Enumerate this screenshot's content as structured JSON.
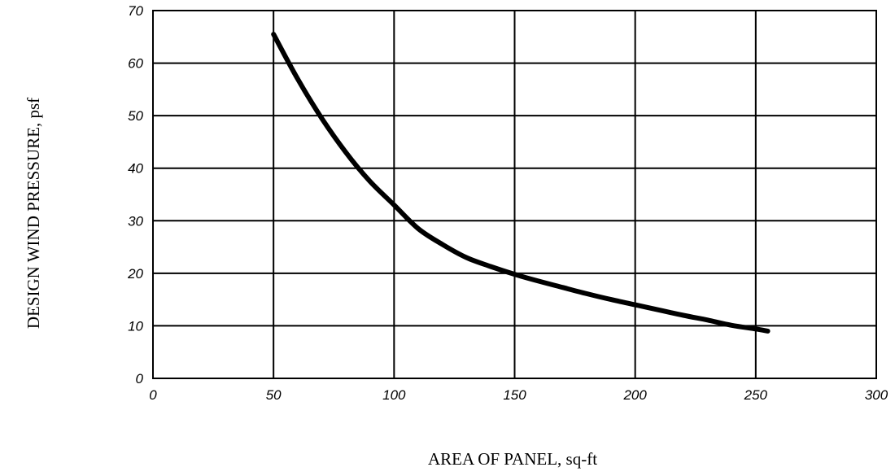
{
  "chart_data": {
    "type": "line",
    "title": "",
    "xlabel": "AREA OF PANEL, sq-ft",
    "ylabel": "DESIGN WIND PRESSURE, psf",
    "xlim": [
      0,
      300
    ],
    "ylim": [
      0,
      70
    ],
    "xticks": [
      0,
      50,
      100,
      150,
      200,
      250,
      300
    ],
    "yticks": [
      0,
      10,
      20,
      30,
      40,
      50,
      60,
      70
    ],
    "grid": true,
    "series": [
      {
        "x": [
          50,
          60,
          70,
          80,
          90,
          100,
          110,
          120,
          130,
          140,
          150,
          160,
          170,
          180,
          190,
          200,
          210,
          220,
          230,
          240,
          250,
          255
        ],
        "y": [
          65.5,
          57,
          49.5,
          43,
          37.5,
          33,
          28.5,
          25.5,
          23,
          21.3,
          19.8,
          18.5,
          17.3,
          16.1,
          15,
          14,
          13,
          12,
          11.1,
          10.1,
          9.4,
          9
        ]
      }
    ]
  },
  "colors": {
    "line": "#000000",
    "grid": "#000000",
    "background": "#ffffff"
  }
}
